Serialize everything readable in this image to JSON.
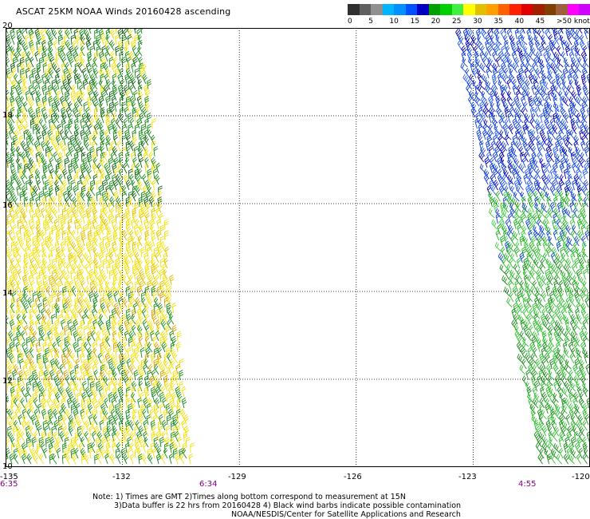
{
  "title": "ASCAT 25KM NOAA Winds 20160428 ascending",
  "legend": {
    "colors": [
      "#303030",
      "#606060",
      "#909090",
      "#00b4ff",
      "#0090ff",
      "#0050ff",
      "#0000c0",
      "#00a000",
      "#00d000",
      "#40f040",
      "#ffff00",
      "#e0c000",
      "#ffa000",
      "#ff6000",
      "#ff2000",
      "#e00000",
      "#a02000",
      "#804000",
      "#a06040",
      "#ff00ff",
      "#d000ff",
      "#8000ff",
      "#6000c0"
    ],
    "labels": [
      {
        "text": "0",
        "pos": 0
      },
      {
        "text": "5",
        "pos": 1
      },
      {
        "text": "10",
        "pos": 2
      },
      {
        "text": "15",
        "pos": 3
      },
      {
        "text": "20",
        "pos": 4
      },
      {
        "text": "25",
        "pos": 5
      },
      {
        "text": "30",
        "pos": 6
      },
      {
        "text": "35",
        "pos": 7
      },
      {
        "text": "40",
        "pos": 8
      },
      {
        "text": "45",
        "pos": 9
      },
      {
        "text": ">50 knots",
        "pos": 10
      }
    ]
  },
  "map": {
    "lon_range": [
      -135,
      -120
    ],
    "lat_range": [
      10,
      20
    ],
    "lon_ticks": [
      "-135",
      "-132",
      "-129",
      "-126",
      "-123",
      "-120"
    ],
    "lat_ticks": [
      "20",
      "18",
      "16",
      "14",
      "12",
      "10"
    ],
    "times": [
      "6:35",
      "6:34",
      "4:55"
    ],
    "swaths": [
      {
        "name": "west",
        "lon_start_top": -135,
        "lon_end_top": -131.5,
        "lon_end_bottom": -130.2
      },
      {
        "name": "east",
        "lon_start_top": -123.4,
        "lon_start_bottom": -121.2,
        "lon_end_top": -120
      }
    ]
  },
  "notes": [
    "Note: 1) Times are GMT 2)Times along bottom correspond to measurement at 15N",
    "3)Data buffer is 22 hrs from 20160428 4) Black wind barbs indicate possible contamination",
    "NOAA/NESDIS/Center for Satellite Applications and Research"
  ]
}
